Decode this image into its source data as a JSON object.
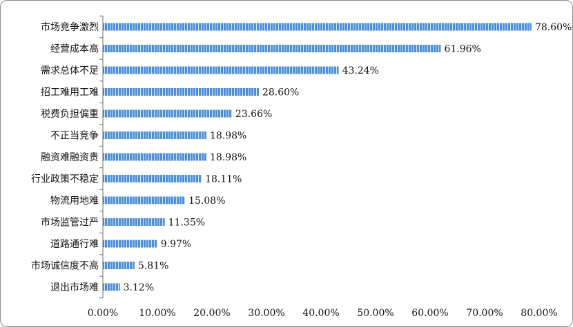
{
  "colors": {
    "bar": "#4f8fd6",
    "bar_stripe": "#d7e8fb",
    "axis": "#6f6f6f",
    "text": "#111111"
  },
  "chart_data": {
    "type": "bar",
    "orientation": "horizontal",
    "title": "",
    "xlabel": "",
    "ylabel": "",
    "categories": [
      "市场竞争激烈",
      "经营成本高",
      "需求总体不足",
      "招工难用工难",
      "税费负担偏重",
      "不正当竞争",
      "融资难融资贵",
      "行业政策不稳定",
      "物流用地难",
      "市场监管过严",
      "道路通行难",
      "市场诚信度不高",
      "退出市场难"
    ],
    "values": [
      78.6,
      61.96,
      43.24,
      28.6,
      23.66,
      18.98,
      18.98,
      18.11,
      15.08,
      11.35,
      9.97,
      5.81,
      3.12
    ],
    "data_labels": [
      "78.60%",
      "61.96%",
      "43.24%",
      "28.60%",
      "23.66%",
      "18.98%",
      "18.98%",
      "18.11%",
      "15.08%",
      "11.35%",
      "9.97%",
      "5.81%",
      "3.12%"
    ],
    "xlim": [
      0,
      80
    ],
    "xticks": [
      0,
      10,
      20,
      30,
      40,
      50,
      60,
      70,
      80
    ],
    "xtick_labels": [
      "0.00%",
      "10.00%",
      "20.00%",
      "30.00%",
      "40.00%",
      "50.00%",
      "60.00%",
      "70.00%",
      "80.00%"
    ],
    "grid": false,
    "legend": "none",
    "bar_pattern": "striped"
  }
}
